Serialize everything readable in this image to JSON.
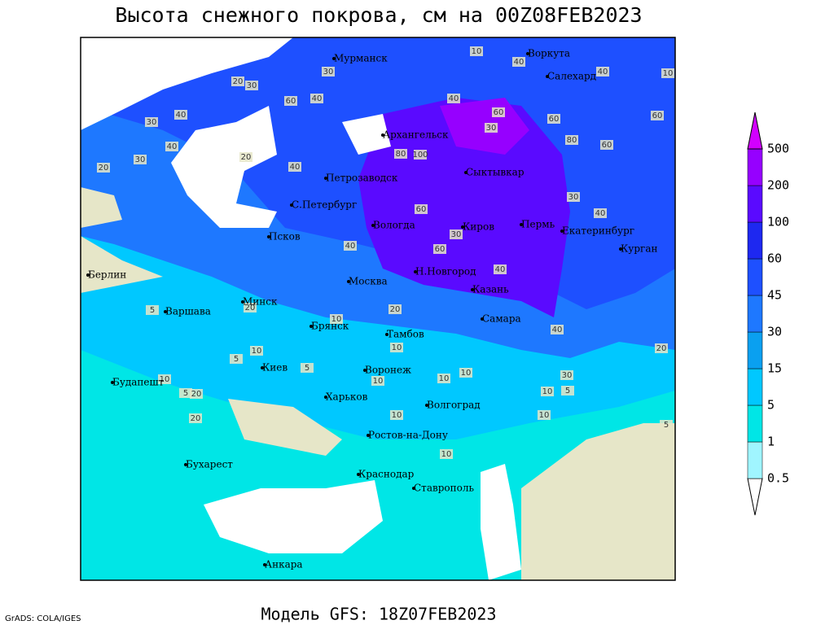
{
  "title": "Высота снежного покрова, см на 00Z08FEB2023",
  "footer": {
    "left": "GrADS: COLA/IGES",
    "model": "Модель GFS: 18Z07FEB2023"
  },
  "legend": {
    "levels": [
      0.5,
      1,
      5,
      15,
      30,
      45,
      60,
      100,
      200,
      500
    ],
    "colors": [
      "#ffffff",
      "#a0f5ff",
      "#00e6e6",
      "#00c8ff",
      "#0aa0f0",
      "#1e78ff",
      "#1e50ff",
      "#1e28f0",
      "#5a0aff",
      "#9600ff",
      "#d200ff"
    ]
  },
  "cities": [
    "Мурманск",
    "Воркута",
    "Салехард",
    "Архангельск",
    "Сыктывкар",
    "Петрозаводск",
    "С.Петербург",
    "Вологда",
    "Киров",
    "Пермь",
    "Екатеринбург",
    "Курган",
    "Псков",
    "Москва",
    "Н.Новгород",
    "Казань",
    "Берлин",
    "Варшава",
    "Минск",
    "Брянск",
    "Тамбов",
    "Самара",
    "Киев",
    "Воронеж",
    "Будапешт",
    "Харьков",
    "Волгоград",
    "Ростов-на-Дону",
    "Бухарест",
    "Краснодар",
    "Ставрополь",
    "Анкара"
  ],
  "contour_labels": [
    10,
    40,
    10,
    40,
    30,
    60,
    40,
    20,
    30,
    40,
    40,
    60,
    30,
    20,
    40,
    40,
    60,
    30,
    60,
    80,
    100,
    80,
    60,
    30,
    40,
    30,
    40,
    60,
    40,
    60,
    40,
    20,
    30,
    5,
    5,
    10,
    10,
    5,
    10,
    5,
    20,
    10,
    10,
    20,
    5,
    10,
    10,
    30,
    10,
    20,
    10,
    5,
    10,
    20,
    10,
    20
  ]
}
